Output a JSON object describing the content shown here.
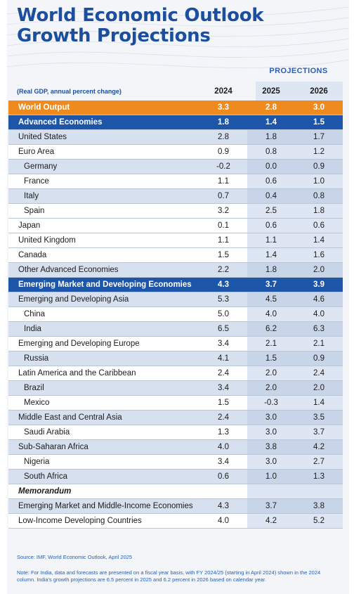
{
  "title_line1": "World Economic Outlook",
  "title_line2": "Growth Projections",
  "projections_label": "PROJECTIONS",
  "unit_label": "(Real GDP, annual percent change)",
  "years": [
    "2024",
    "2025",
    "2026"
  ],
  "colors": {
    "title": "#1b4e9e",
    "world_row": "#ef8a1e",
    "group_row": "#1d56a8",
    "alt_row": "#d6e0ee"
  },
  "chart_data": {
    "type": "table",
    "columns": [
      "2024",
      "2025",
      "2026"
    ],
    "rows": [
      {
        "name": "World Output",
        "values": [
          "3.3",
          "2.8",
          "3.0"
        ]
      },
      {
        "name": "Advanced Economies",
        "values": [
          "1.8",
          "1.4",
          "1.5"
        ]
      },
      {
        "name": "United States",
        "values": [
          "2.8",
          "1.8",
          "1.7"
        ]
      },
      {
        "name": "Euro Area",
        "values": [
          "0.9",
          "0.8",
          "1.2"
        ]
      },
      {
        "name": "Germany",
        "values": [
          "-0.2",
          "0.0",
          "0.9"
        ]
      },
      {
        "name": "France",
        "values": [
          "1.1",
          "0.6",
          "1.0"
        ]
      },
      {
        "name": "Italy",
        "values": [
          "0.7",
          "0.4",
          "0.8"
        ]
      },
      {
        "name": "Spain",
        "values": [
          "3.2",
          "2.5",
          "1.8"
        ]
      },
      {
        "name": "Japan",
        "values": [
          "0.1",
          "0.6",
          "0.6"
        ]
      },
      {
        "name": "United Kingdom",
        "values": [
          "1.1",
          "1.1",
          "1.4"
        ]
      },
      {
        "name": "Canada",
        "values": [
          "1.5",
          "1.4",
          "1.6"
        ]
      },
      {
        "name": "Other Advanced Economies",
        "values": [
          "2.2",
          "1.8",
          "2.0"
        ]
      },
      {
        "name": "Emerging Market and Developing Economies",
        "values": [
          "4.3",
          "3.7",
          "3.9"
        ]
      },
      {
        "name": "Emerging and Developing Asia",
        "values": [
          "5.3",
          "4.5",
          "4.6"
        ]
      },
      {
        "name": "China",
        "values": [
          "5.0",
          "4.0",
          "4.0"
        ]
      },
      {
        "name": "India",
        "values": [
          "6.5",
          "6.2",
          "6.3"
        ]
      },
      {
        "name": "Emerging and Developing Europe",
        "values": [
          "3.4",
          "2.1",
          "2.1"
        ]
      },
      {
        "name": "Russia",
        "values": [
          "4.1",
          "1.5",
          "0.9"
        ]
      },
      {
        "name": "Latin America and the Caribbean",
        "values": [
          "2.4",
          "2.0",
          "2.4"
        ]
      },
      {
        "name": "Brazil",
        "values": [
          "3.4",
          "2.0",
          "2.0"
        ]
      },
      {
        "name": "Mexico",
        "values": [
          "1.5",
          "-0.3",
          "1.4"
        ]
      },
      {
        "name": "Middle East and Central Asia",
        "values": [
          "2.4",
          "3.0",
          "3.5"
        ]
      },
      {
        "name": "Saudi Arabia",
        "values": [
          "1.3",
          "3.0",
          "3.7"
        ]
      },
      {
        "name": "Sub-Saharan Africa",
        "values": [
          "4.0",
          "3.8",
          "4.2"
        ]
      },
      {
        "name": "Nigeria",
        "values": [
          "3.4",
          "3.0",
          "2.7"
        ]
      },
      {
        "name": "South Africa",
        "values": [
          "0.6",
          "1.0",
          "1.3"
        ]
      },
      {
        "name": "Memorandum",
        "values": [
          "",
          "",
          ""
        ]
      },
      {
        "name": "Emerging Market and Middle-Income Economies",
        "values": [
          "4.3",
          "3.7",
          "3.8"
        ]
      },
      {
        "name": "Low-Income Developing Countries",
        "values": [
          "4.0",
          "4.2",
          "5.2"
        ]
      }
    ]
  },
  "source_text": "Source: IMF, World Economic Outlook, April 2025",
  "note_text": "Note: For India, data and forecasts are presented on a fiscal year basis, with FY 2024/25 (starting in April 2024) shown in the 2024 column. India's growth projections are 6.5 percent in 2025 and 6.2 percent in 2026 based on calendar year."
}
